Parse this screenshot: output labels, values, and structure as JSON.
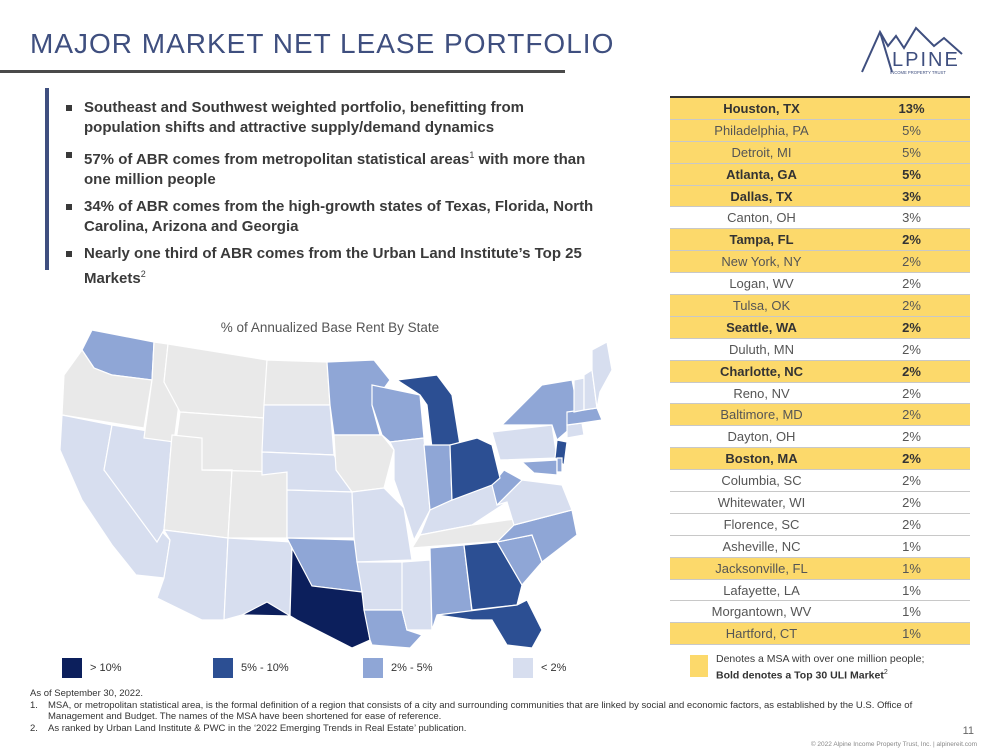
{
  "title": "MAJOR MARKET NET LEASE PORTFOLIO",
  "logo": {
    "text": "LPINE",
    "subtext": "INCOME PROPERTY TRUST",
    "color": "#3f4f7f"
  },
  "bullets": [
    {
      "text": "Southeast and Southwest weighted portfolio, benefitting from population shifts and attractive supply/demand dynamics",
      "sup": ""
    },
    {
      "text": "57% of ABR comes from metropolitan statistical areas",
      "sup": "1",
      "text2": " with more than one million people"
    },
    {
      "text": "34% of ABR comes from the high-growth states of Texas, Florida, North Carolina, Arizona and Georgia",
      "sup": ""
    },
    {
      "text": "Nearly one third of ABR comes from the Urban Land Institute’s Top 25 Markets",
      "sup": "2"
    }
  ],
  "map": {
    "title": "% of Annualized Base Rent By State",
    "legend": [
      {
        "label": "> 10%",
        "color": "#0c1f5c"
      },
      {
        "label": "5% - 10%",
        "color": "#2c4f93"
      },
      {
        "label": "2% - 5%",
        "color": "#8fa6d6"
      },
      {
        "label": "< 2%",
        "color": "#d7deef"
      }
    ],
    "none_color": "#e9e9e9"
  },
  "table": {
    "rows": [
      {
        "msa": "Houston, TX",
        "pct": "13%",
        "large": true,
        "uli": true
      },
      {
        "msa": "Philadelphia, PA",
        "pct": "5%",
        "large": true,
        "uli": false
      },
      {
        "msa": "Detroit, MI",
        "pct": "5%",
        "large": true,
        "uli": false
      },
      {
        "msa": "Atlanta, GA",
        "pct": "5%",
        "large": true,
        "uli": true
      },
      {
        "msa": "Dallas, TX",
        "pct": "3%",
        "large": true,
        "uli": true
      },
      {
        "msa": "Canton, OH",
        "pct": "3%",
        "large": false,
        "uli": false
      },
      {
        "msa": "Tampa, FL",
        "pct": "2%",
        "large": true,
        "uli": true
      },
      {
        "msa": "New York, NY",
        "pct": "2%",
        "large": true,
        "uli": false
      },
      {
        "msa": "Logan, WV",
        "pct": "2%",
        "large": false,
        "uli": false
      },
      {
        "msa": "Tulsa, OK",
        "pct": "2%",
        "large": true,
        "uli": false
      },
      {
        "msa": "Seattle, WA",
        "pct": "2%",
        "large": true,
        "uli": true
      },
      {
        "msa": "Duluth, MN",
        "pct": "2%",
        "large": false,
        "uli": false
      },
      {
        "msa": "Charlotte, NC",
        "pct": "2%",
        "large": true,
        "uli": true
      },
      {
        "msa": "Reno, NV",
        "pct": "2%",
        "large": false,
        "uli": false
      },
      {
        "msa": "Baltimore, MD",
        "pct": "2%",
        "large": true,
        "uli": false
      },
      {
        "msa": "Dayton, OH",
        "pct": "2%",
        "large": false,
        "uli": false
      },
      {
        "msa": "Boston, MA",
        "pct": "2%",
        "large": true,
        "uli": true
      },
      {
        "msa": "Columbia, SC",
        "pct": "2%",
        "large": false,
        "uli": false
      },
      {
        "msa": "Whitewater, WI",
        "pct": "2%",
        "large": false,
        "uli": false
      },
      {
        "msa": "Florence, SC",
        "pct": "2%",
        "large": false,
        "uli": false
      },
      {
        "msa": "Asheville, NC",
        "pct": "1%",
        "large": false,
        "uli": false
      },
      {
        "msa": "Jacksonville, FL",
        "pct": "1%",
        "large": true,
        "uli": false
      },
      {
        "msa": "Lafayette, LA",
        "pct": "1%",
        "large": false,
        "uli": false
      },
      {
        "msa": "Morgantown, WV",
        "pct": "1%",
        "large": false,
        "uli": false
      },
      {
        "msa": "Hartford, CT",
        "pct": "1%",
        "large": true,
        "uli": false
      }
    ],
    "legend_line1": "Denotes a MSA with over one million people;",
    "legend_line2": "Bold denotes a Top 30 ULI Market",
    "legend_sup": "2",
    "highlight_color": "#fcd96b"
  },
  "footnotes": {
    "asof": "As of September 30, 2022.",
    "notes": [
      {
        "num": "1.",
        "text": "MSA, or metropolitan statistical area, is the formal definition of a region that consists of a city and surrounding communities that are linked by social and economic factors, as established by the U.S. Office of Management and Budget. The names of the MSA have been shortened for ease of reference."
      },
      {
        "num": "2.",
        "text": "As ranked by Urban Land Institute & PWC in the ‘2022 Emerging Trends in Real Estate’ publication."
      }
    ]
  },
  "page_number": "11",
  "copyright": "© 2022 Alpine Income Property Trust, Inc.  |  alpinereit.com"
}
